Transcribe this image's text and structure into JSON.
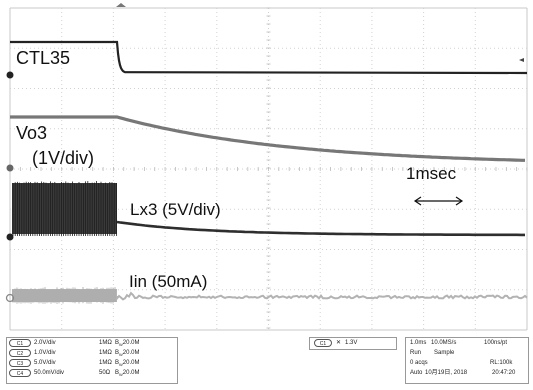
{
  "labels": {
    "ctl35": "CTL35",
    "vo3": "Vo3",
    "vo3_scale": "(1V/div)",
    "lx3": "Lx3 (5V/div)",
    "iin": "Iin (50mA)",
    "time_marker": "1msec"
  },
  "channels": [
    {
      "id": "C1",
      "scale": "2.0V/div",
      "impedance": "1MΩ",
      "bw": "20.0M"
    },
    {
      "id": "C2",
      "scale": "1.0V/div",
      "impedance": "1MΩ",
      "bw": "20.0M"
    },
    {
      "id": "C3",
      "scale": "5.0V/div",
      "impedance": "1MΩ",
      "bw": "20.0M"
    },
    {
      "id": "C4",
      "scale": "50.0mV/div",
      "impedance": "50Ω",
      "bw": "20.0M"
    }
  ],
  "trigger": {
    "source": "C1",
    "level": "1.3V"
  },
  "acquisition": {
    "timebase": "1.0ms",
    "sample_rate": "10.0MS/s",
    "resolution": "100ns/pt",
    "state": "Run",
    "mode": "Sample",
    "acqs": "0 acqs",
    "record": "RL:100k",
    "trigger_mode": "Auto",
    "date": "10月19日, 2018",
    "time": "20:47:20"
  },
  "colors": {
    "trace": "#2b2b2b",
    "trace_gray": "#6e6e6e",
    "trace_light": "#b0b0b0",
    "grid": "#d0d0d0"
  }
}
